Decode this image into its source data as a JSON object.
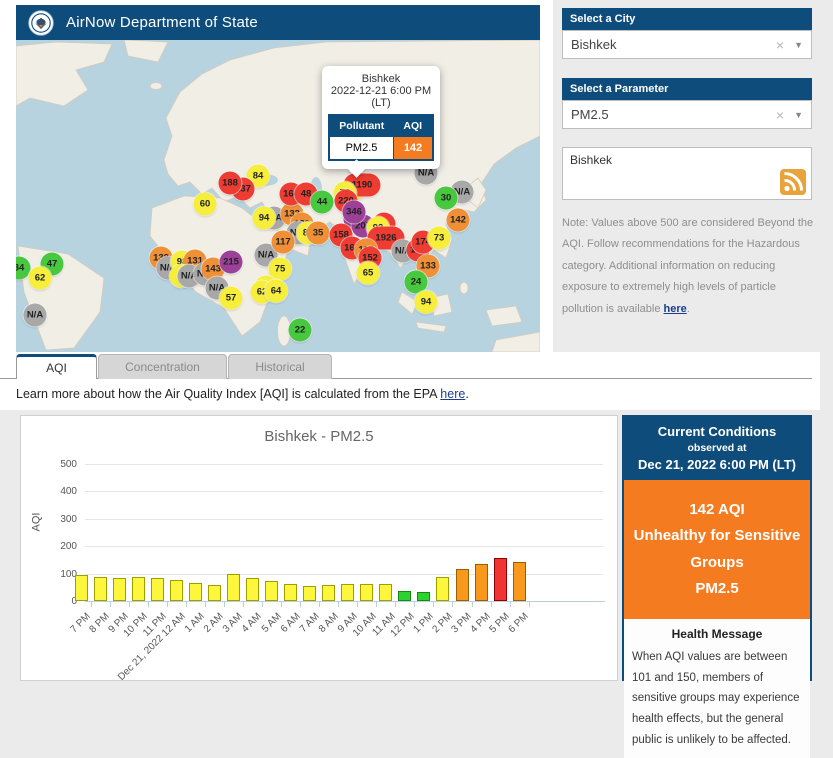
{
  "header": {
    "title": "AirNow Department of State"
  },
  "sidebar": {
    "city": {
      "label": "Select a City",
      "value": "Bishkek"
    },
    "parameter": {
      "label": "Select a Parameter",
      "value": "PM2.5"
    },
    "rss": {
      "city": "Bishkek"
    },
    "note": {
      "prefix": "Note: Values above 500 are considered Beyond the AQI. Follow recommendations for the Hazardous category. Additional information on reducing exposure to extremely high levels of particle pollution is available ",
      "link": "here",
      "suffix": "."
    }
  },
  "popup": {
    "city": "Bishkek",
    "datetime": "2022-12-21 6:00 PM",
    "tz": "(LT)",
    "col_pollutant": "Pollutant",
    "col_aqi": "AQI",
    "pollutant": "PM2.5",
    "aqi": "142"
  },
  "tabs": [
    {
      "label": "AQI",
      "active": true
    },
    {
      "label": "Concentration",
      "active": false
    },
    {
      "label": "Historical",
      "active": false
    }
  ],
  "learn_more": {
    "prefix": "Learn more about how the Air Quality Index [AQI] is calculated from the EPA ",
    "link": "here",
    "suffix": "."
  },
  "chart_data": {
    "type": "bar",
    "title": "Bishkek - PM2.5",
    "xlabel": "",
    "ylabel": "AQI",
    "ylim": [
      0,
      500
    ],
    "yticks": [
      0,
      100,
      200,
      300,
      400,
      500
    ],
    "grid": true,
    "categories": [
      "7 PM",
      "8 PM",
      "9 PM",
      "10 PM",
      "11 PM",
      "Dec 21, 2022 12 AM",
      "1 AM",
      "2 AM",
      "3 AM",
      "4 AM",
      "5 AM",
      "6 AM",
      "7 AM",
      "8 AM",
      "9 AM",
      "10 AM",
      "11 AM",
      "12 PM",
      "1 PM",
      "2 PM",
      "3 PM",
      "4 PM",
      "5 PM",
      "6 PM"
    ],
    "values": [
      94,
      87,
      84,
      87,
      82,
      77,
      67,
      60,
      99,
      84,
      72,
      63,
      56,
      59,
      62,
      63,
      62,
      36,
      33,
      89,
      118,
      135,
      155,
      142
    ],
    "bar_colors": [
      "yellow",
      "yellow",
      "yellow",
      "yellow",
      "yellow",
      "yellow",
      "yellow",
      "yellow",
      "yellow",
      "yellow",
      "yellow",
      "yellow",
      "yellow",
      "yellow",
      "yellow",
      "yellow",
      "yellow",
      "green",
      "green",
      "yellow",
      "orange",
      "orange",
      "red",
      "orange"
    ]
  },
  "current_conditions": {
    "title": "Current Conditions",
    "observed_at": "observed at",
    "datetime": "Dec 21, 2022 6:00 PM (LT)",
    "aqi_line1": "142 AQI",
    "aqi_line2": "Unhealthy for Sensitive Groups",
    "aqi_line3": "PM2.5",
    "health_title": "Health Message",
    "health_text": "When AQI values are between 101 and 150, members of sensitive groups may experience health effects, but the general public is unlikely to be affected."
  },
  "colors": {
    "accent_blue": "#0E4D7B",
    "aqi_orange_block": "#F47B20",
    "marker": {
      "green": "#47c83e",
      "yellow": "#f6ee3b",
      "orange": "#ef9036",
      "red": "#ee3c32",
      "purple": "#9b4198",
      "gray": "#a8a8a8"
    },
    "bar_fill": {
      "green": "#2ed22e",
      "yellow": "#fcf63d",
      "orange": "#f8991d",
      "red": "#f23333"
    },
    "bar_border": {
      "green": "#148a14",
      "yellow": "#9e9e00",
      "orange": "#9c5f00",
      "red": "#8f0000"
    }
  },
  "map": {
    "markers": [
      {
        "x": 3,
        "y": 228,
        "color": "green",
        "label": "34"
      },
      {
        "x": 36,
        "y": 224,
        "color": "green",
        "label": "47"
      },
      {
        "x": 24,
        "y": 238,
        "color": "yellow",
        "label": "62"
      },
      {
        "x": 19,
        "y": 275,
        "color": "gray",
        "label": "N/A"
      },
      {
        "x": 189,
        "y": 164,
        "color": "yellow",
        "label": "60"
      },
      {
        "x": 242,
        "y": 136,
        "color": "yellow",
        "label": "84"
      },
      {
        "x": 227,
        "y": 149,
        "color": "red",
        "label": "137"
      },
      {
        "x": 214,
        "y": 143,
        "color": "red",
        "label": "188"
      },
      {
        "x": 145,
        "y": 218,
        "color": "orange",
        "label": "138"
      },
      {
        "x": 152,
        "y": 228,
        "color": "gray",
        "label": "N/A"
      },
      {
        "x": 166,
        "y": 222,
        "color": "yellow",
        "label": "98"
      },
      {
        "x": 179,
        "y": 221,
        "color": "orange",
        "label": "131"
      },
      {
        "x": 165,
        "y": 236,
        "color": "yellow",
        "label": "8"
      },
      {
        "x": 173,
        "y": 236,
        "color": "gray",
        "label": "N/A"
      },
      {
        "x": 189,
        "y": 234,
        "color": "gray",
        "label": "N/A"
      },
      {
        "x": 197,
        "y": 229,
        "color": "orange",
        "label": "143"
      },
      {
        "x": 215,
        "y": 222,
        "color": "purple",
        "label": "215"
      },
      {
        "x": 201,
        "y": 248,
        "color": "gray",
        "label": "N/A"
      },
      {
        "x": 215,
        "y": 258,
        "color": "yellow",
        "label": "57"
      },
      {
        "x": 250,
        "y": 215,
        "color": "gray",
        "label": "N/A"
      },
      {
        "x": 258,
        "y": 178,
        "color": "gray",
        "label": "N/A"
      },
      {
        "x": 248,
        "y": 178,
        "color": "yellow",
        "label": "94"
      },
      {
        "x": 276,
        "y": 174,
        "color": "orange",
        "label": "133"
      },
      {
        "x": 286,
        "y": 184,
        "color": "orange",
        "label": "139"
      },
      {
        "x": 282,
        "y": 193,
        "color": "gray",
        "label": "N/A"
      },
      {
        "x": 292,
        "y": 193,
        "color": "yellow",
        "label": "80"
      },
      {
        "x": 302,
        "y": 193,
        "color": "orange",
        "label": "35"
      },
      {
        "x": 267,
        "y": 202,
        "color": "orange",
        "label": "117"
      },
      {
        "x": 264,
        "y": 229,
        "color": "yellow",
        "label": "75"
      },
      {
        "x": 250,
        "y": 247,
        "color": "yellow",
        "label": "96"
      },
      {
        "x": 246,
        "y": 252,
        "color": "yellow",
        "label": "62"
      },
      {
        "x": 260,
        "y": 251,
        "color": "yellow",
        "label": "64"
      },
      {
        "x": 284,
        "y": 290,
        "color": "green",
        "label": "22"
      },
      {
        "x": 275,
        "y": 154,
        "color": "red",
        "label": "164"
      },
      {
        "x": 290,
        "y": 154,
        "color": "red",
        "label": "48"
      },
      {
        "x": 306,
        "y": 162,
        "color": "green",
        "label": "44"
      },
      {
        "x": 337,
        "y": 150,
        "color": "yellow",
        "label": ""
      },
      {
        "x": 346,
        "y": 145,
        "color": "red",
        "label": "1190",
        "wide": true
      },
      {
        "x": 329,
        "y": 153,
        "color": "yellow",
        "label": "78"
      },
      {
        "x": 330,
        "y": 161,
        "color": "red",
        "label": "220"
      },
      {
        "x": 339,
        "y": 179,
        "color": "purple",
        "label": "403"
      },
      {
        "x": 347,
        "y": 186,
        "color": "purple",
        "label": "207"
      },
      {
        "x": 338,
        "y": 172,
        "color": "purple",
        "label": "346"
      },
      {
        "x": 368,
        "y": 184,
        "color": "red",
        "label": ""
      },
      {
        "x": 362,
        "y": 188,
        "color": "yellow",
        "label": "92"
      },
      {
        "x": 370,
        "y": 198,
        "color": "red",
        "label": "1926",
        "wide": true
      },
      {
        "x": 325,
        "y": 195,
        "color": "red",
        "label": "158"
      },
      {
        "x": 336,
        "y": 208,
        "color": "red",
        "label": "162"
      },
      {
        "x": 350,
        "y": 210,
        "color": "orange",
        "label": "117"
      },
      {
        "x": 354,
        "y": 218,
        "color": "red",
        "label": "152"
      },
      {
        "x": 352,
        "y": 233,
        "color": "yellow",
        "label": "65"
      },
      {
        "x": 387,
        "y": 211,
        "color": "gray",
        "label": "N/A"
      },
      {
        "x": 402,
        "y": 210,
        "color": "red",
        "label": "172"
      },
      {
        "x": 407,
        "y": 202,
        "color": "red",
        "label": "174"
      },
      {
        "x": 423,
        "y": 198,
        "color": "yellow",
        "label": "73"
      },
      {
        "x": 412,
        "y": 226,
        "color": "orange",
        "label": "133"
      },
      {
        "x": 400,
        "y": 242,
        "color": "green",
        "label": "24"
      },
      {
        "x": 410,
        "y": 262,
        "color": "yellow",
        "label": "94"
      },
      {
        "x": 446,
        "y": 152,
        "color": "gray",
        "label": "N/A"
      },
      {
        "x": 430,
        "y": 158,
        "color": "green",
        "label": "30"
      },
      {
        "x": 442,
        "y": 180,
        "color": "orange",
        "label": "142"
      },
      {
        "x": 410,
        "y": 133,
        "color": "gray",
        "label": "N/A"
      }
    ]
  }
}
